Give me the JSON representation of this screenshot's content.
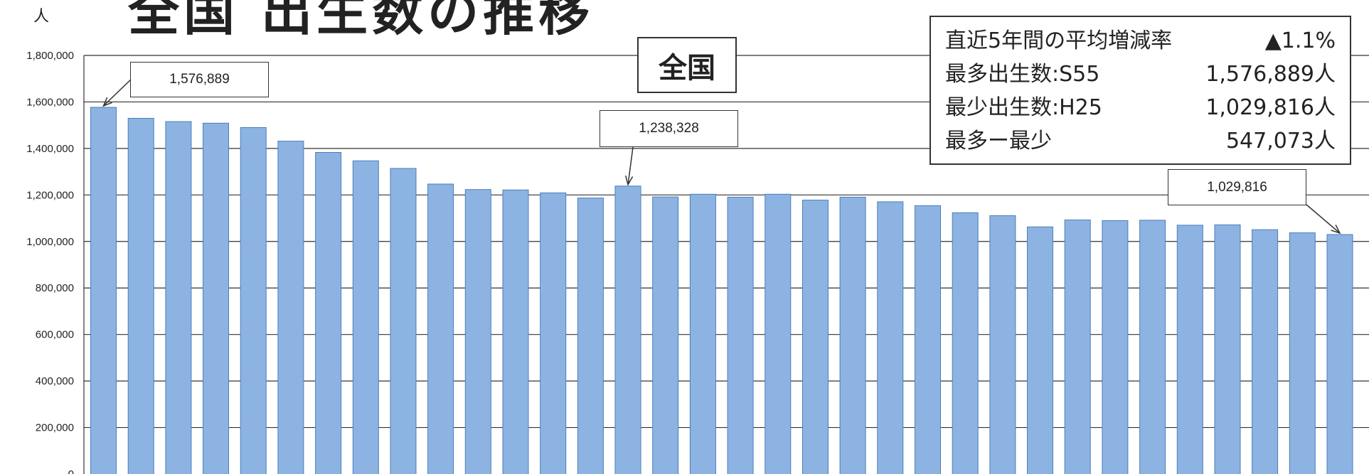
{
  "title_fragment": "全国 出生数の推移",
  "unit_label": "人",
  "region_label": "全国",
  "stats": [
    {
      "label": "直近5年間の平均増減率",
      "value": "▲1.1%"
    },
    {
      "label": "最多出生数:S55",
      "value": "1,576,889人"
    },
    {
      "label": "最少出生数:H25",
      "value": "1,029,816人"
    },
    {
      "label": "最多ー最少",
      "value": "547,073人"
    }
  ],
  "callouts": [
    {
      "text": "1,576,889",
      "bar_index": 0
    },
    {
      "text": "1,238,328",
      "bar_index": 14
    },
    {
      "text": "1,029,816",
      "bar_index": 33
    }
  ],
  "colors": {
    "bar_fill": "#8db3e2",
    "bar_stroke": "#4a7ebb",
    "grid": "#333333"
  },
  "chart_data": {
    "type": "bar",
    "title": "",
    "xlabel": "",
    "ylabel": "人",
    "ylim": [
      0,
      1800000
    ],
    "yticks": [
      0,
      200000,
      400000,
      600000,
      800000,
      1000000,
      1200000,
      1400000,
      1600000,
      1800000
    ],
    "ytick_labels": [
      "0",
      "200,000",
      "400,000",
      "600,000",
      "800,000",
      "1,000,000",
      "1,200,000",
      "1,400,000",
      "1,600,000",
      "1,800,000"
    ],
    "grid": true,
    "values": [
      1576889,
      1529455,
      1515392,
      1508687,
      1489780,
      1431577,
      1382946,
      1346658,
      1314006,
      1246802,
      1223245,
      1221585,
      1208989,
      1187064,
      1238328,
      1191665,
      1203147,
      1190547,
      1203147,
      1177669,
      1190547,
      1170662,
      1153855,
      1123610,
      1110721,
      1062530,
      1092674,
      1089818,
      1091156,
      1070035,
      1071304,
      1050806,
      1037231,
      1029816
    ]
  }
}
